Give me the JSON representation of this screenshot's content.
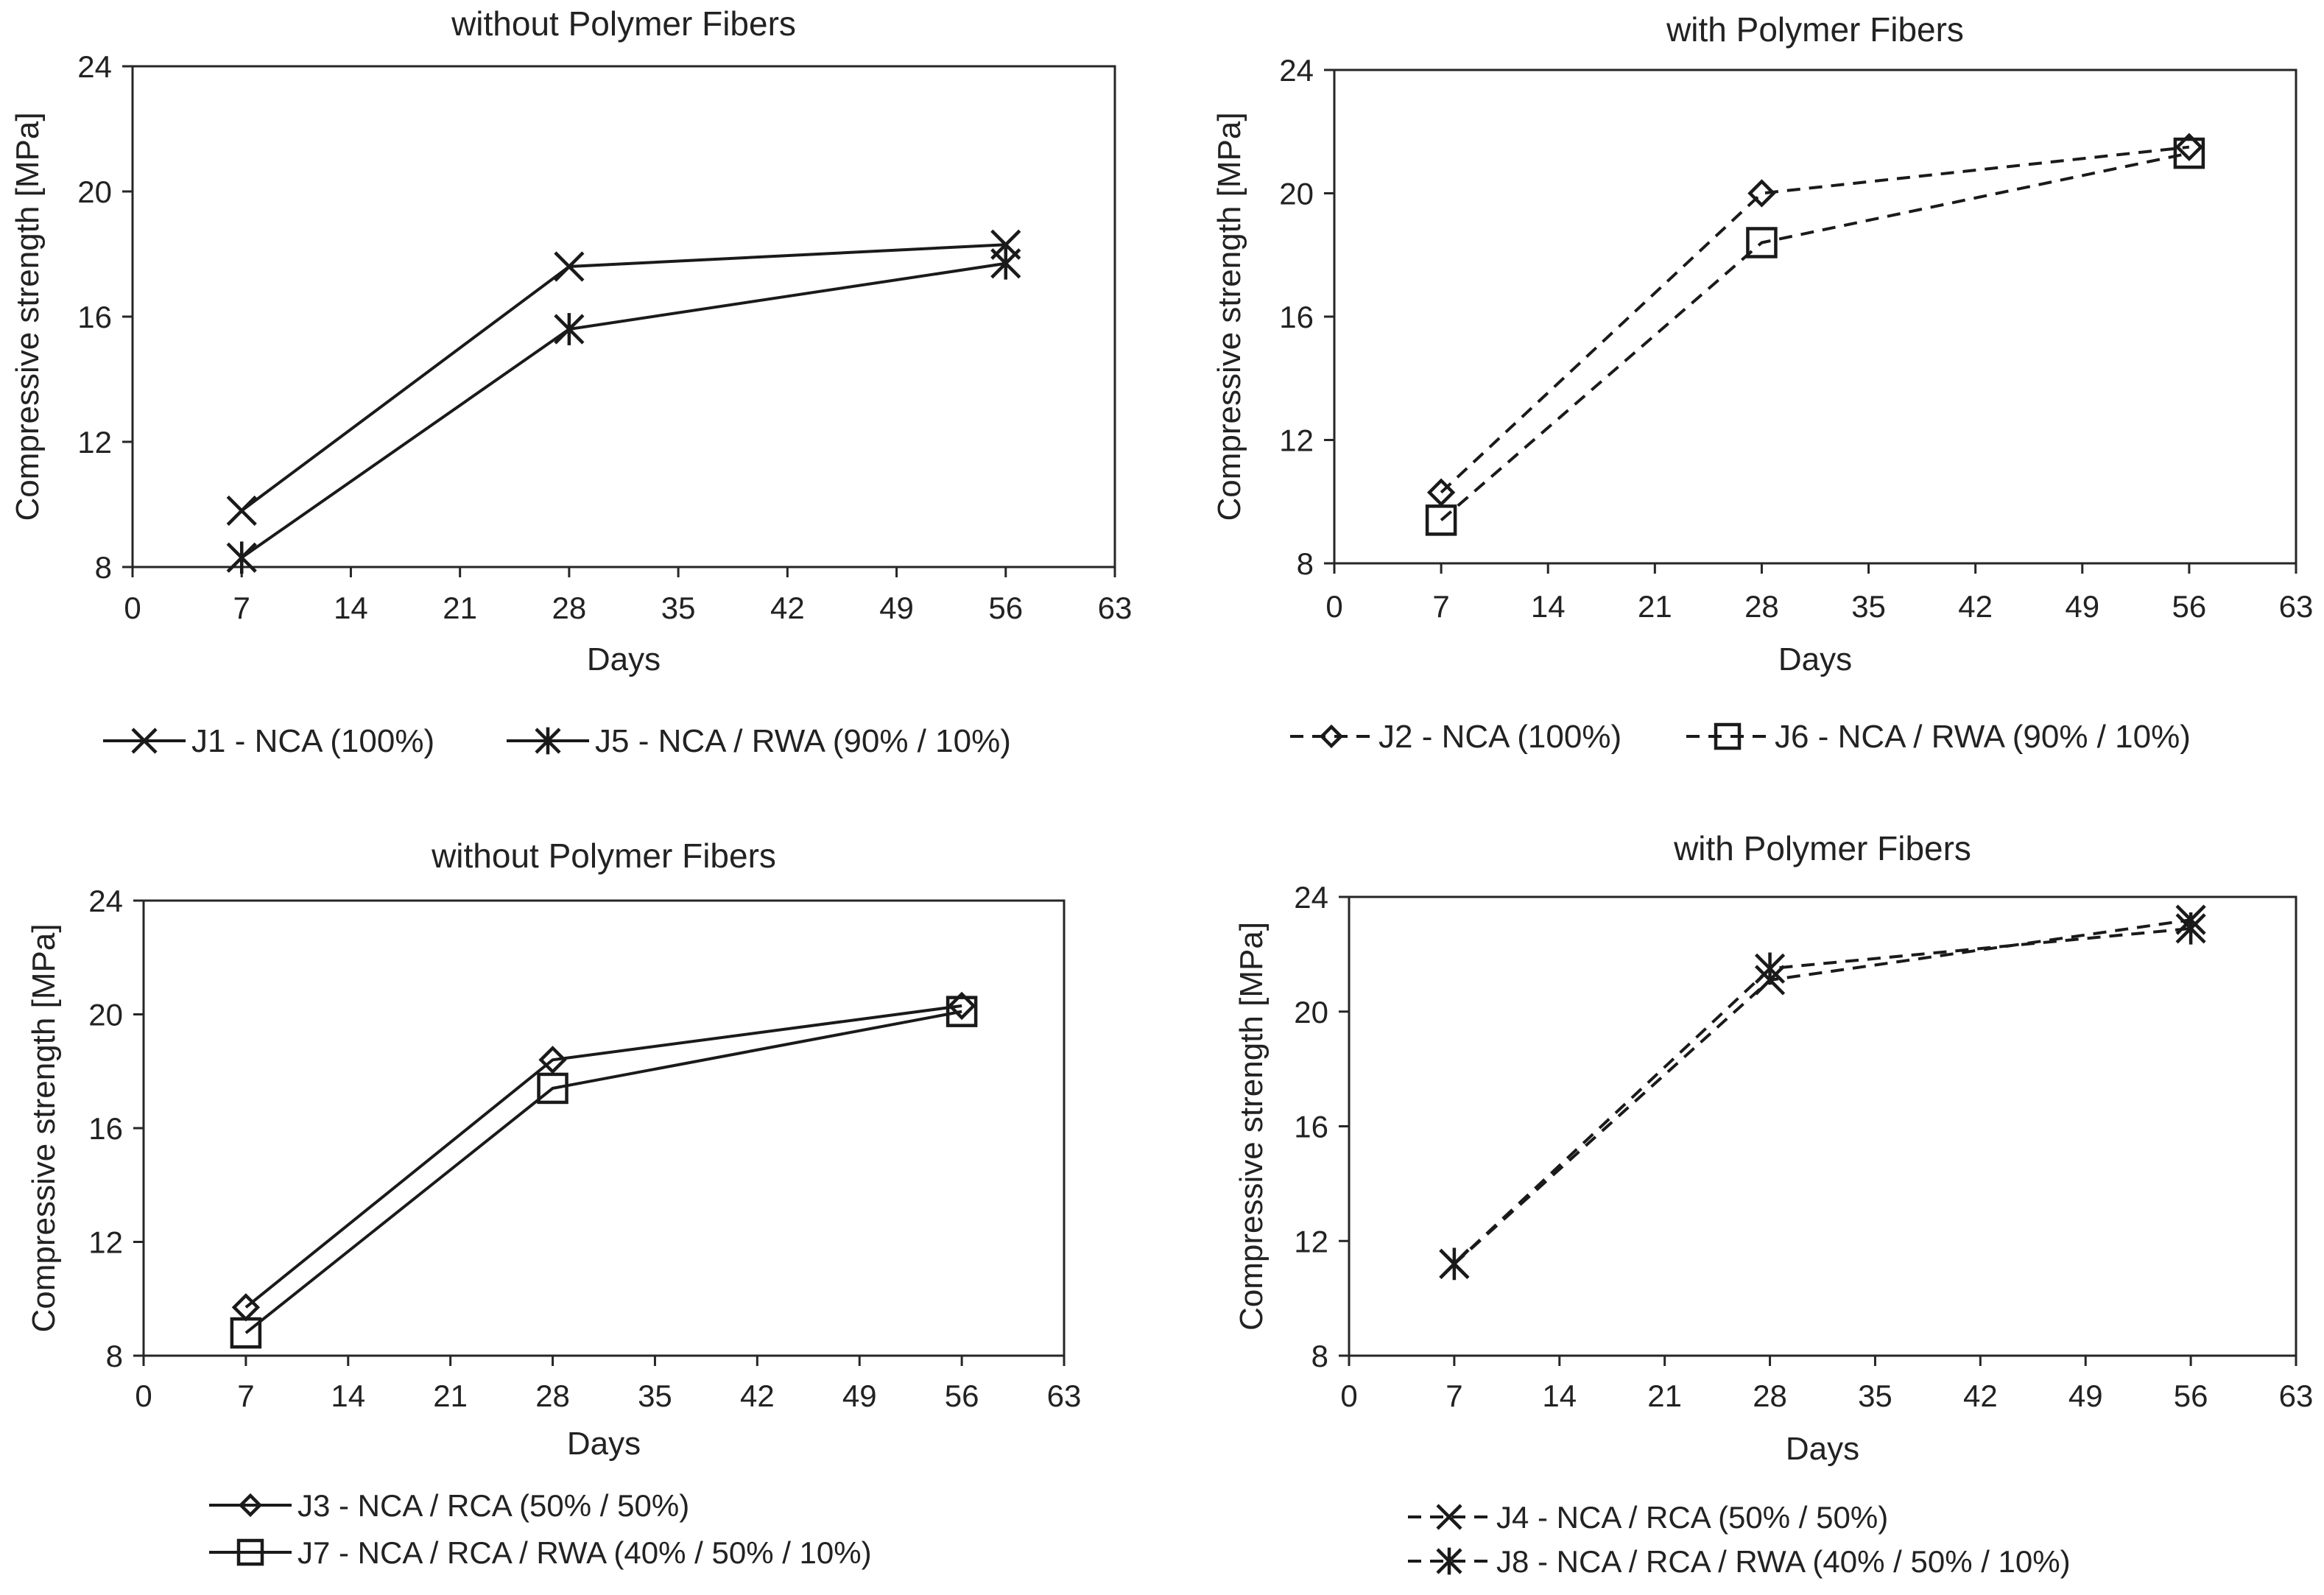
{
  "chart_data": [
    {
      "type": "line",
      "title": "without Polymer Fibers",
      "xlabel": "Days",
      "ylabel": "Compressive strength [MPa]",
      "xlim": [
        0,
        63
      ],
      "ylim": [
        8,
        24
      ],
      "xticks": [
        0,
        7,
        14,
        21,
        28,
        35,
        42,
        49,
        56,
        63
      ],
      "yticks": [
        8,
        12,
        16,
        20,
        24
      ],
      "grid": false,
      "legend_position": "bottom",
      "series": [
        {
          "name": "J1 - NCA (100%)",
          "marker": "x",
          "linestyle": "solid",
          "x": [
            7,
            28,
            56
          ],
          "y": [
            9.8,
            17.6,
            18.3
          ]
        },
        {
          "name": "J5 - NCA / RWA (90% / 10%)",
          "marker": "asterisk",
          "linestyle": "solid",
          "x": [
            7,
            28,
            56
          ],
          "y": [
            8.3,
            15.6,
            17.7
          ]
        }
      ]
    },
    {
      "type": "line",
      "title": "with Polymer Fibers",
      "xlabel": "Days",
      "ylabel": "Compressive strength [MPa]",
      "xlim": [
        0,
        63
      ],
      "ylim": [
        8,
        24
      ],
      "xticks": [
        0,
        7,
        14,
        21,
        28,
        35,
        42,
        49,
        56,
        63
      ],
      "yticks": [
        8,
        12,
        16,
        20,
        24
      ],
      "grid": false,
      "legend_position": "bottom",
      "series": [
        {
          "name": "J2 - NCA (100%)",
          "marker": "diamond",
          "linestyle": "dashed",
          "x": [
            7,
            28,
            56
          ],
          "y": [
            10.3,
            20.0,
            21.5
          ]
        },
        {
          "name": "J6 - NCA / RWA (90% / 10%)",
          "marker": "square",
          "linestyle": "dashed",
          "x": [
            7,
            28,
            56
          ],
          "y": [
            9.4,
            18.4,
            21.3
          ]
        }
      ]
    },
    {
      "type": "line",
      "title": "without Polymer Fibers",
      "xlabel": "Days",
      "ylabel": "Compressive strength [MPa]",
      "xlim": [
        0,
        63
      ],
      "ylim": [
        8,
        24
      ],
      "xticks": [
        0,
        7,
        14,
        21,
        28,
        35,
        42,
        49,
        56,
        63
      ],
      "yticks": [
        8,
        12,
        16,
        20,
        24
      ],
      "grid": false,
      "legend_position": "bottom",
      "series": [
        {
          "name": "J3 - NCA / RCA (50% / 50%)",
          "marker": "diamond",
          "linestyle": "solid",
          "x": [
            7,
            28,
            56
          ],
          "y": [
            9.7,
            18.4,
            20.3
          ]
        },
        {
          "name": "J7 - NCA / RCA / RWA (40% / 50% / 10%)",
          "marker": "square",
          "linestyle": "solid",
          "x": [
            7,
            28,
            56
          ],
          "y": [
            8.8,
            17.4,
            20.1
          ]
        }
      ]
    },
    {
      "type": "line",
      "title": "with Polymer Fibers",
      "xlabel": "Days",
      "ylabel": "Compressive strength [MPa]",
      "xlim": [
        0,
        63
      ],
      "ylim": [
        8,
        24
      ],
      "xticks": [
        0,
        7,
        14,
        21,
        28,
        35,
        42,
        49,
        56,
        63
      ],
      "yticks": [
        8,
        12,
        16,
        20,
        24
      ],
      "grid": false,
      "legend_position": "bottom",
      "series": [
        {
          "name": "J4 - NCA / RCA (50% / 50%)",
          "marker": "x",
          "linestyle": "dashed",
          "x": [
            7,
            28,
            56
          ],
          "y": [
            11.2,
            21.1,
            23.2
          ]
        },
        {
          "name": "J8 - NCA / RCA / RWA (40% / 50% / 10%)",
          "marker": "asterisk",
          "linestyle": "dashed",
          "x": [
            7,
            28,
            56
          ],
          "y": [
            11.2,
            21.5,
            22.9
          ]
        }
      ]
    }
  ]
}
